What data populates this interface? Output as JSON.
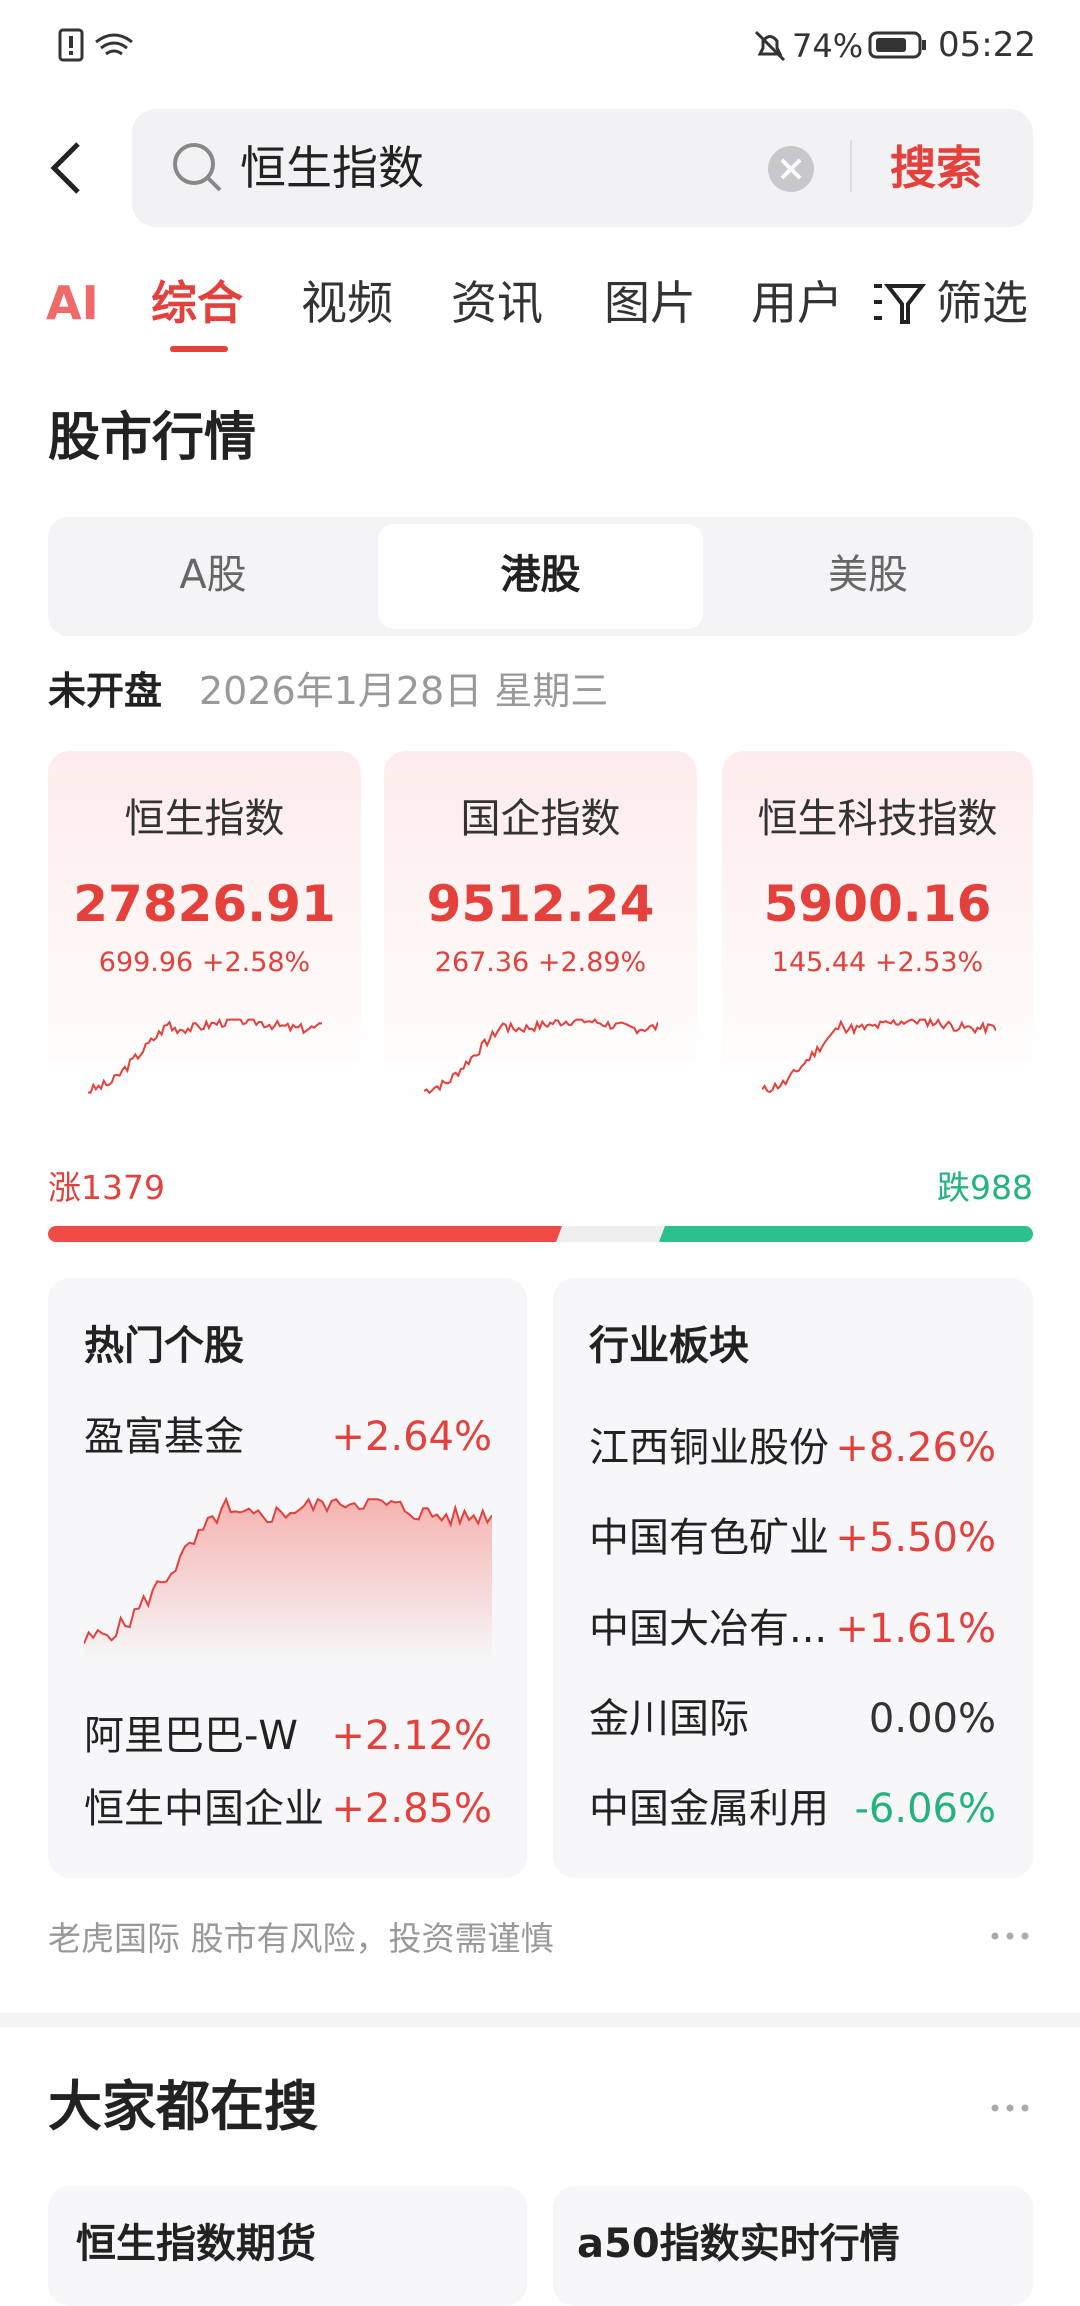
{
  "status_bar": {
    "battery": "74%",
    "time": "05:22"
  },
  "search": {
    "query": "恒生指数",
    "button": "搜索"
  },
  "tabs": [
    "AI",
    "综合",
    "视频",
    "资讯",
    "图片",
    "用户"
  ],
  "filter": "筛选",
  "market": {
    "title": "股市行情",
    "tabs": [
      "A股",
      "港股",
      "美股"
    ],
    "status": "未开盘",
    "date": "2026年1月28日 星期三",
    "indices": [
      {
        "name": "恒生指数",
        "value": "27826.91",
        "change": "699.96 +2.58%"
      },
      {
        "name": "国企指数",
        "value": "9512.24",
        "change": "267.36 +2.89%"
      },
      {
        "name": "恒生科技指数",
        "value": "5900.16",
        "change": "145.44 +2.53%"
      }
    ],
    "rise": "涨1379",
    "fall": "跌988",
    "hot": {
      "title": "热门个股",
      "items": [
        {
          "name": "盈富基金",
          "change": "+2.64%"
        },
        {
          "name": "阿里巴巴-W",
          "change": "+2.12%"
        },
        {
          "name": "恒生中国企业",
          "change": "+2.85%"
        }
      ]
    },
    "sector": {
      "title": "行业板块",
      "items": [
        {
          "name": "江西铜业股份",
          "change": "+8.26%"
        },
        {
          "name": "中国有色矿业",
          "change": "+5.50%"
        },
        {
          "name": "中国大冶有...",
          "change": "+1.61%"
        },
        {
          "name": "金川国际",
          "change": "0.00%"
        },
        {
          "name": "中国金属利用",
          "change": "-6.06%"
        }
      ]
    },
    "footer": "老虎国际 股市有风险，投资需谨慎"
  },
  "trending": {
    "title": "大家都在搜",
    "items": [
      "恒生指数期货",
      "a50指数实时行情"
    ]
  }
}
